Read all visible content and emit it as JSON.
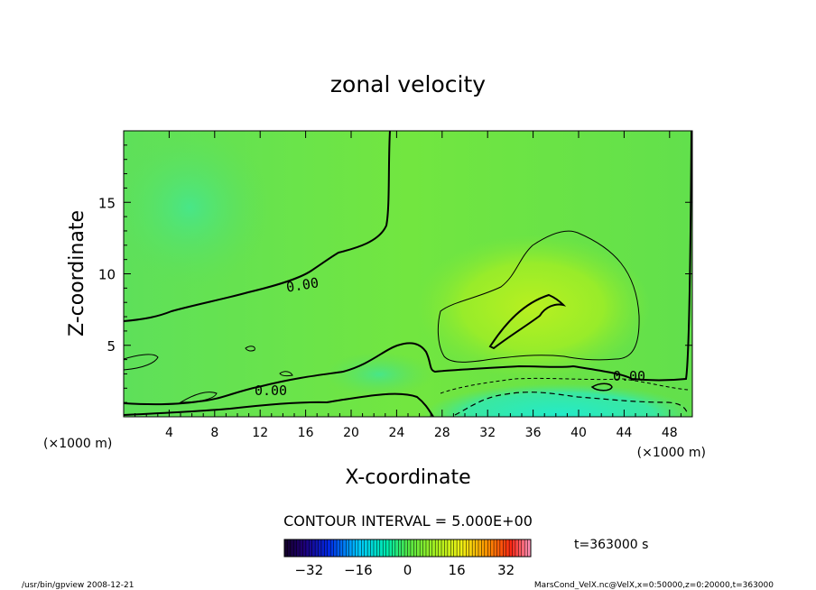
{
  "chart_data": {
    "type": "heatmap",
    "title": "zonal velocity",
    "xlabel": "X-coordinate",
    "ylabel": "Z-coordinate",
    "x_unit_left": "(×1000 m)",
    "x_unit_right": "(×1000 m)",
    "xlim": [
      0,
      50
    ],
    "ylim": [
      0,
      20
    ],
    "x_ticks": [
      4,
      8,
      12,
      16,
      20,
      24,
      28,
      32,
      36,
      40,
      44,
      48
    ],
    "y_ticks": [
      5,
      10,
      15
    ],
    "contour_interval_text": "CONTOUR INTERVAL = 5.000E+00",
    "contour_labels": [
      "0.00",
      "0.00",
      "0.00"
    ],
    "time_text": "t=363000 s",
    "colorbar": {
      "range": [
        -40,
        40
      ],
      "ticks": [
        -32,
        -16,
        0,
        16,
        32
      ],
      "tick_labels": [
        "−32",
        "−16",
        "0",
        "16",
        "32"
      ]
    },
    "footer_left": "/usr/bin/gpview   2008-12-21",
    "footer_right": "MarsCond_VelX.nc@VelX,x=0:50000,z=0:20000,t=363000"
  }
}
